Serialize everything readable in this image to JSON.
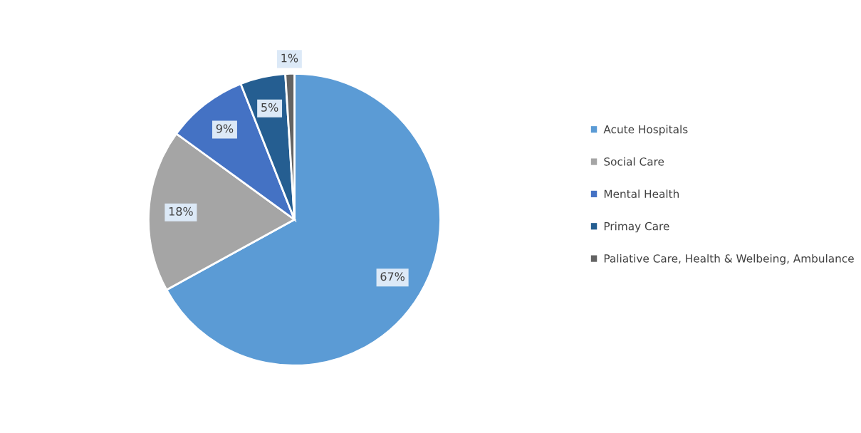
{
  "chart_data": {
    "type": "pie",
    "categories": [
      "Acute Hospitals",
      "Social Care",
      "Mental Health",
      "Primay Care",
      "Paliative Care, Health & Welbeing, Ambulance"
    ],
    "values": [
      67,
      18,
      9,
      5,
      1
    ],
    "colors": [
      "#5b9bd5",
      "#a5a5a5",
      "#4472c4",
      "#255e91",
      "#636363"
    ],
    "value_labels": [
      "67%",
      "18%",
      "9%",
      "5%",
      "1%"
    ],
    "legend": "right"
  }
}
